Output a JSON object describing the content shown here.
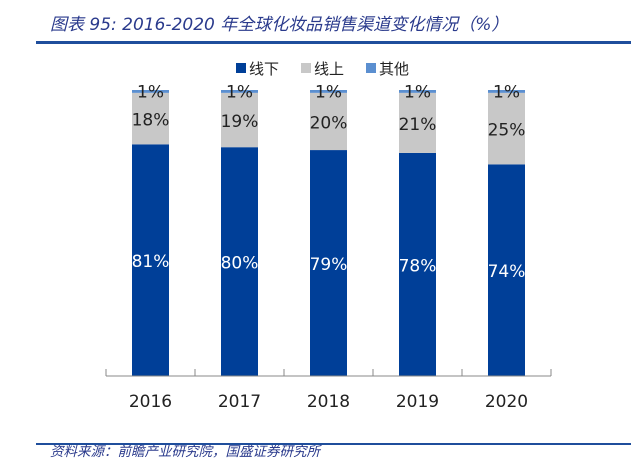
{
  "title": "图表 95: 2016-2020 年全球化妆品销售渠道变化情况（%）",
  "source": "资料来源：前瞻产业研究院，国盛证券研究所",
  "chart_data": {
    "type": "stacked-bar",
    "categories": [
      "2016",
      "2017",
      "2018",
      "2019",
      "2020"
    ],
    "series": [
      {
        "name": "线下",
        "color": "#003f98",
        "values": [
          81,
          80,
          79,
          78,
          74
        ]
      },
      {
        "name": "线上",
        "color": "#c8c8c8",
        "values": [
          18,
          19,
          20,
          21,
          25
        ]
      },
      {
        "name": "其他",
        "color": "#5b8fd0",
        "values": [
          1,
          1,
          1,
          1,
          1
        ]
      }
    ],
    "ylim": [
      0,
      100
    ],
    "data_label_format": "{v}%",
    "legend": "top",
    "grid": false
  }
}
